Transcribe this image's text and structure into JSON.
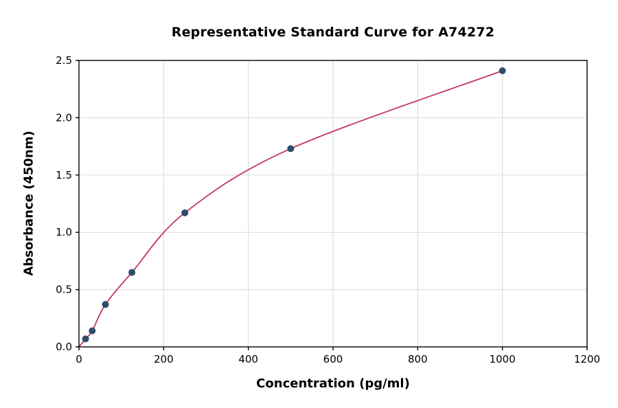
{
  "chart_data": {
    "type": "scatter",
    "title": "Representative Standard Curve for A74272",
    "xlabel": "Concentration (pg/ml)",
    "ylabel": "Absorbance (450nm)",
    "xlim": [
      0,
      1200
    ],
    "ylim": [
      0,
      2.5
    ],
    "xticks": [
      0,
      200,
      400,
      600,
      800,
      1000,
      1200
    ],
    "xtick_labels": [
      "0",
      "200",
      "400",
      "600",
      "800",
      "1000",
      "1200"
    ],
    "yticks": [
      0.0,
      0.5,
      1.0,
      1.5,
      2.0,
      2.5
    ],
    "ytick_labels": [
      "0.0",
      "0.5",
      "1.0",
      "1.5",
      "2.0",
      "2.5"
    ],
    "grid": true,
    "legend_position": "none",
    "series": [
      {
        "name": "standard-points",
        "type": "scatter",
        "points": [
          [
            15.6,
            0.07
          ],
          [
            31.25,
            0.14
          ],
          [
            62.5,
            0.37
          ],
          [
            125,
            0.65
          ],
          [
            250,
            1.17
          ],
          [
            500,
            1.73
          ],
          [
            1000,
            2.41
          ]
        ]
      },
      {
        "name": "fit-curve",
        "type": "line",
        "curve_anchor": [
          0,
          0.0
        ]
      }
    ],
    "colors": {
      "point_color": "#2e4d6b",
      "curve_color": "#c2375f",
      "grid_color": "#d9d9d9",
      "axis_color": "#000000",
      "background": "#ffffff"
    }
  }
}
